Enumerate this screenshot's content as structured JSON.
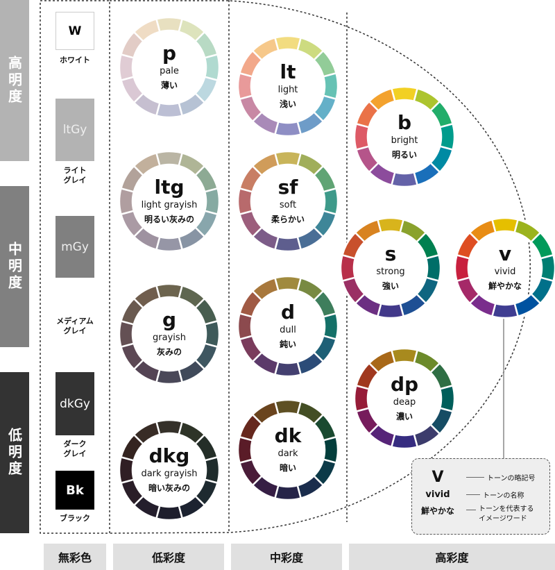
{
  "lightness_bars": [
    {
      "label": "高明度",
      "color": "#b3b3b3"
    },
    {
      "label": "中明度",
      "color": "#808080"
    },
    {
      "label": "低明度",
      "color": "#333333"
    }
  ],
  "achromatic": [
    {
      "abbr": "W",
      "label": "ホワイト",
      "color": "#ffffff"
    },
    {
      "abbr": "ltGy",
      "label": "ライト\nグレイ",
      "color": "#b3b3b3"
    },
    {
      "abbr": "mGy",
      "label": "メディアム\nグレイ",
      "color": "#808080"
    },
    {
      "abbr": "dkGy",
      "label": "ダーク\nグレイ",
      "color": "#333333"
    },
    {
      "abbr": "Bk",
      "label": "ブラック",
      "color": "#000000"
    }
  ],
  "chroma_labels": [
    "無彩色",
    "低彩度",
    "中彩度",
    "高彩度"
  ],
  "tones": [
    {
      "abbr": "p",
      "name": "pale",
      "jp": "薄い",
      "colors": [
        "#e8e0c0",
        "#dde3bc",
        "#b8dac4",
        "#b0dad0",
        "#bcd8e0",
        "#b6c2d4",
        "#bcbfd4",
        "#c6bfd0",
        "#dac8d4",
        "#e0ccd4",
        "#e2ccc6",
        "#efdcc4"
      ]
    },
    {
      "abbr": "ltg",
      "name": "light grayish",
      "jp": "明るい灰みの",
      "colors": [
        "#bab5a4",
        "#afb596",
        "#8daa94",
        "#86aaa2",
        "#88a6ac",
        "#8894a4",
        "#9696a6",
        "#9e92a0",
        "#aa9aa4",
        "#b09ea0",
        "#b2a29a",
        "#c2b09c"
      ]
    },
    {
      "abbr": "g",
      "name": "grayish",
      "jp": "灰みの",
      "colors": [
        "#6c644e",
        "#5e6650",
        "#485e50",
        "#3e5a5a",
        "#3e5660",
        "#404a5a",
        "#4a4858",
        "#544454",
        "#5c4854",
        "#645054",
        "#6a5a50",
        "#705e4e"
      ]
    },
    {
      "abbr": "dkg",
      "name": "dark grayish",
      "jp": "暗い灰みの",
      "colors": [
        "#35312a",
        "#2e3428",
        "#242e28",
        "#1f2c2c",
        "#1e2a30",
        "#1c2230",
        "#1e1e2c",
        "#241e2c",
        "#2a1e28",
        "#301e24",
        "#342420",
        "#382c26"
      ]
    },
    {
      "abbr": "lt",
      "name": "light",
      "jp": "浅い",
      "colors": [
        "#f2dc80",
        "#cddb80",
        "#92cc98",
        "#66c2b4",
        "#64b0c8",
        "#6e9cc8",
        "#8e8ec4",
        "#a98ab8",
        "#c888a4",
        "#e89a9a",
        "#f2a88a",
        "#f6c88a"
      ]
    },
    {
      "abbr": "sf",
      "name": "soft",
      "jp": "柔らかい",
      "colors": [
        "#c8b45a",
        "#a0ae5a",
        "#60a474",
        "#3e9a8a",
        "#3e8698",
        "#4a6e96",
        "#5e5e8e",
        "#7c5c88",
        "#9c5e7c",
        "#b86a6c",
        "#c87e64",
        "#d09c5a"
      ]
    },
    {
      "abbr": "d",
      "name": "dull",
      "jp": "鈍い",
      "colors": [
        "#a08a3e",
        "#788a42",
        "#3e7e5c",
        "#147068",
        "#1e6076",
        "#2c4c78",
        "#444070",
        "#5c3a6a",
        "#7a3c5c",
        "#8c4a4e",
        "#a05a44",
        "#a8783c"
      ]
    },
    {
      "abbr": "dk",
      "name": "dark",
      "jp": "暗い",
      "colors": [
        "#5e5024",
        "#434e24",
        "#1a4a30",
        "#043e3c",
        "#0c3a48",
        "#1a2c4c",
        "#262448",
        "#361e44",
        "#4a1c38",
        "#5a1c28",
        "#66281e",
        "#6a441e"
      ]
    },
    {
      "abbr": "b",
      "name": "bright",
      "jp": "明るい",
      "colors": [
        "#f2d024",
        "#acc42e",
        "#22ad6a",
        "#009c8c",
        "#008aa3",
        "#1a6fba",
        "#6462a8",
        "#8c4c9c",
        "#b5558a",
        "#dd5a66",
        "#ea7248",
        "#f3a22e"
      ]
    },
    {
      "abbr": "s",
      "name": "strong",
      "jp": "強い",
      "colors": [
        "#d8b41c",
        "#8aa22d",
        "#008050",
        "#006e68",
        "#0f6680",
        "#1e4f94",
        "#42398a",
        "#6c2f82",
        "#9a3064",
        "#b8304a",
        "#c8502c",
        "#d88320"
      ]
    },
    {
      "abbr": "v",
      "name": "vivid",
      "jp": "鮮やかな",
      "colors": [
        "#e5bf00",
        "#9bb31d",
        "#009a5a",
        "#007f73",
        "#00708a",
        "#0052a0",
        "#3f3d91",
        "#7a2d8c",
        "#a52968",
        "#c8203e",
        "#de4e22",
        "#e88c14"
      ]
    },
    {
      "abbr": "dp",
      "name": "deap",
      "jp": "濃い",
      "colors": [
        "#a88a1e",
        "#6c8a2a",
        "#2f6e44",
        "#005e5a",
        "#164c64",
        "#3c3c6c",
        "#362c80",
        "#562478",
        "#761c5c",
        "#961c38",
        "#a0381e",
        "#a86818"
      ]
    }
  ],
  "legend": {
    "abbr": "V",
    "abbr_desc": "トーンの略記号",
    "name": "vivid",
    "name_desc": "トーンの名称",
    "jp": "鮮やかな",
    "jp_desc": "トーンを代表する\nイメージワード"
  }
}
